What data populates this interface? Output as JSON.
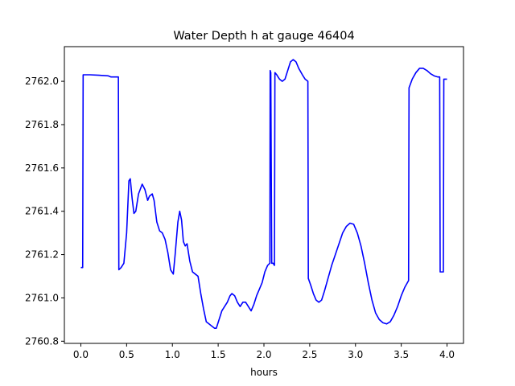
{
  "chart_data": {
    "type": "line",
    "title": "Water Depth h at gauge 46404",
    "xlabel": "hours",
    "ylabel": "",
    "xlim": [
      -0.18,
      4.18
    ],
    "ylim": [
      2760.79,
      2762.16
    ],
    "grid": false,
    "x_ticks": [
      {
        "value": 0.0,
        "label": "0.0"
      },
      {
        "value": 0.5,
        "label": "0.5"
      },
      {
        "value": 1.0,
        "label": "1.0"
      },
      {
        "value": 1.5,
        "label": "1.5"
      },
      {
        "value": 2.0,
        "label": "2.0"
      },
      {
        "value": 2.5,
        "label": "2.5"
      },
      {
        "value": 3.0,
        "label": "3.0"
      },
      {
        "value": 3.5,
        "label": "3.5"
      },
      {
        "value": 4.0,
        "label": "4.0"
      }
    ],
    "y_ticks": [
      {
        "value": 2760.8,
        "label": "2760.8"
      },
      {
        "value": 2761.0,
        "label": "2761.0"
      },
      {
        "value": 2761.2,
        "label": "2761.2"
      },
      {
        "value": 2761.4,
        "label": "2761.4"
      },
      {
        "value": 2761.6,
        "label": "2761.6"
      },
      {
        "value": 2761.8,
        "label": "2761.8"
      },
      {
        "value": 2762.0,
        "label": "2762.0"
      }
    ],
    "series": [
      {
        "color": "#0000ff",
        "points": [
          [
            0.0,
            2761.14
          ],
          [
            0.02,
            2761.14
          ],
          [
            0.025,
            2762.03
          ],
          [
            0.1,
            2762.03
          ],
          [
            0.2,
            2762.028
          ],
          [
            0.3,
            2762.025
          ],
          [
            0.33,
            2762.02
          ],
          [
            0.41,
            2762.02
          ],
          [
            0.415,
            2761.13
          ],
          [
            0.44,
            2761.14
          ],
          [
            0.47,
            2761.16
          ],
          [
            0.5,
            2761.3
          ],
          [
            0.525,
            2761.54
          ],
          [
            0.54,
            2761.55
          ],
          [
            0.56,
            2761.46
          ],
          [
            0.58,
            2761.39
          ],
          [
            0.6,
            2761.4
          ],
          [
            0.63,
            2761.48
          ],
          [
            0.67,
            2761.525
          ],
          [
            0.7,
            2761.5
          ],
          [
            0.73,
            2761.45
          ],
          [
            0.75,
            2761.47
          ],
          [
            0.78,
            2761.48
          ],
          [
            0.8,
            2761.45
          ],
          [
            0.83,
            2761.35
          ],
          [
            0.86,
            2761.31
          ],
          [
            0.89,
            2761.3
          ],
          [
            0.92,
            2761.27
          ],
          [
            0.95,
            2761.21
          ],
          [
            0.98,
            2761.13
          ],
          [
            1.01,
            2761.11
          ],
          [
            1.03,
            2761.2
          ],
          [
            1.06,
            2761.35
          ],
          [
            1.08,
            2761.4
          ],
          [
            1.1,
            2761.36
          ],
          [
            1.12,
            2761.26
          ],
          [
            1.14,
            2761.24
          ],
          [
            1.16,
            2761.25
          ],
          [
            1.19,
            2761.17
          ],
          [
            1.22,
            2761.12
          ],
          [
            1.25,
            2761.11
          ],
          [
            1.28,
            2761.1
          ],
          [
            1.31,
            2761.02
          ],
          [
            1.34,
            2760.95
          ],
          [
            1.37,
            2760.89
          ],
          [
            1.4,
            2760.88
          ],
          [
            1.43,
            2760.87
          ],
          [
            1.46,
            2760.86
          ],
          [
            1.48,
            2760.86
          ],
          [
            1.51,
            2760.9
          ],
          [
            1.54,
            2760.94
          ],
          [
            1.57,
            2760.96
          ],
          [
            1.6,
            2760.98
          ],
          [
            1.63,
            2761.01
          ],
          [
            1.65,
            2761.02
          ],
          [
            1.68,
            2761.01
          ],
          [
            1.71,
            2760.98
          ],
          [
            1.74,
            2760.96
          ],
          [
            1.77,
            2760.98
          ],
          [
            1.8,
            2760.98
          ],
          [
            1.83,
            2760.96
          ],
          [
            1.86,
            2760.94
          ],
          [
            1.89,
            2760.97
          ],
          [
            1.92,
            2761.01
          ],
          [
            1.95,
            2761.04
          ],
          [
            1.98,
            2761.07
          ],
          [
            2.01,
            2761.12
          ],
          [
            2.04,
            2761.15
          ],
          [
            2.065,
            2761.16
          ],
          [
            2.068,
            2762.05
          ],
          [
            2.075,
            2762.04
          ],
          [
            2.085,
            2761.16
          ],
          [
            2.1,
            2761.16
          ],
          [
            2.115,
            2761.15
          ],
          [
            2.12,
            2762.04
          ],
          [
            2.14,
            2762.03
          ],
          [
            2.17,
            2762.01
          ],
          [
            2.2,
            2762.0
          ],
          [
            2.23,
            2762.01
          ],
          [
            2.26,
            2762.05
          ],
          [
            2.29,
            2762.09
          ],
          [
            2.32,
            2762.1
          ],
          [
            2.35,
            2762.09
          ],
          [
            2.38,
            2762.06
          ],
          [
            2.42,
            2762.03
          ],
          [
            2.45,
            2762.01
          ],
          [
            2.48,
            2762.0
          ],
          [
            2.485,
            2761.09
          ],
          [
            2.51,
            2761.06
          ],
          [
            2.54,
            2761.02
          ],
          [
            2.57,
            2760.99
          ],
          [
            2.6,
            2760.98
          ],
          [
            2.63,
            2760.99
          ],
          [
            2.66,
            2761.03
          ],
          [
            2.7,
            2761.09
          ],
          [
            2.74,
            2761.15
          ],
          [
            2.78,
            2761.2
          ],
          [
            2.82,
            2761.25
          ],
          [
            2.86,
            2761.3
          ],
          [
            2.9,
            2761.33
          ],
          [
            2.94,
            2761.345
          ],
          [
            2.98,
            2761.34
          ],
          [
            3.02,
            2761.3
          ],
          [
            3.06,
            2761.24
          ],
          [
            3.1,
            2761.16
          ],
          [
            3.14,
            2761.07
          ],
          [
            3.18,
            2760.99
          ],
          [
            3.22,
            2760.93
          ],
          [
            3.26,
            2760.9
          ],
          [
            3.3,
            2760.885
          ],
          [
            3.34,
            2760.88
          ],
          [
            3.38,
            2760.89
          ],
          [
            3.42,
            2760.92
          ],
          [
            3.46,
            2760.96
          ],
          [
            3.5,
            2761.01
          ],
          [
            3.54,
            2761.05
          ],
          [
            3.58,
            2761.08
          ],
          [
            3.585,
            2761.97
          ],
          [
            3.62,
            2762.01
          ],
          [
            3.66,
            2762.04
          ],
          [
            3.7,
            2762.06
          ],
          [
            3.74,
            2762.06
          ],
          [
            3.78,
            2762.05
          ],
          [
            3.82,
            2762.035
          ],
          [
            3.86,
            2762.025
          ],
          [
            3.9,
            2762.02
          ],
          [
            3.92,
            2762.02
          ],
          [
            3.925,
            2761.12
          ],
          [
            3.96,
            2761.12
          ],
          [
            3.965,
            2762.01
          ],
          [
            4.0,
            2762.01
          ]
        ]
      }
    ]
  }
}
